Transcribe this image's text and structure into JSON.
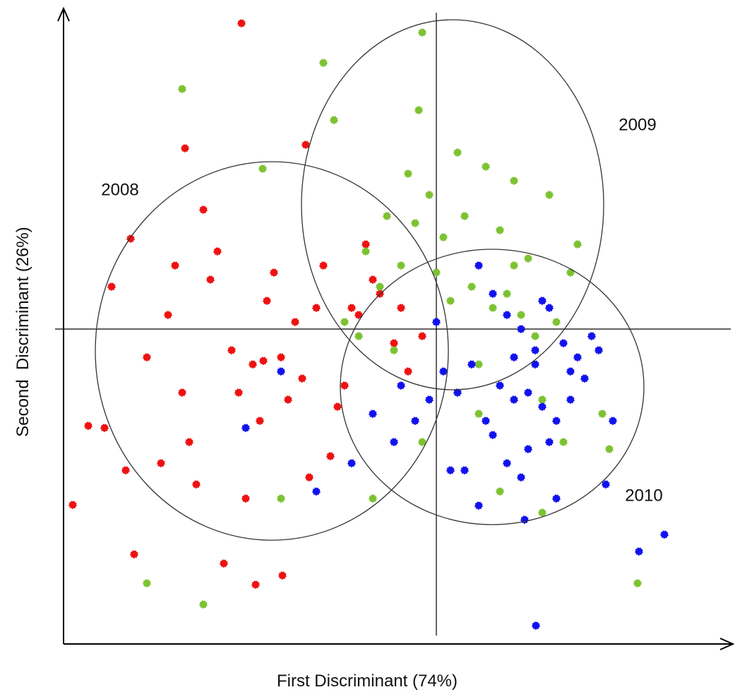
{
  "chart_data": {
    "type": "scatter",
    "x_label": "First Discriminant (74%)",
    "y_label": "Second  Discriminant (26%)",
    "xlim": [
      -5.28,
      4.17
    ],
    "ylim": [
      -4.46,
      4.51
    ],
    "series": [
      {
        "name": "2008",
        "color": "#ee1111",
        "ellipse": {
          "cx": -2.33,
          "cy": -0.31,
          "rx": 2.5,
          "ry": 2.68
        },
        "x": [
          -2.76,
          -3.56,
          -5.15,
          -4.28,
          -3.01,
          -2.56,
          -2.18,
          -4.93,
          -4.33,
          -3.3,
          -1.85,
          -4.6,
          -4.1,
          -3.8,
          -3.5,
          -3.2,
          -2.9,
          -2.6,
          -2.4,
          -2.2,
          -2.0,
          -1.8,
          -1.6,
          -1.4,
          -1.2,
          -1.0,
          -0.8,
          -0.6,
          -0.4,
          -0.2,
          -4.4,
          -3.9,
          -3.4,
          -2.8,
          -2.5,
          -2.3,
          -1.9,
          -1.5,
          -1.1,
          -0.9,
          -3.7,
          -3.1,
          -2.7,
          -2.1,
          -1.7,
          -1.3,
          -0.5,
          -4.7,
          -3.6,
          -2.45
        ],
        "y": [
          4.33,
          2.56,
          -2.49,
          -3.19,
          -3.32,
          -3.62,
          -3.49,
          -1.37,
          1.28,
          1.69,
          2.61,
          0.6,
          -0.4,
          0.2,
          -1.6,
          0.7,
          -0.3,
          -0.5,
          0.4,
          -0.4,
          0.1,
          -2.1,
          0.9,
          -1.1,
          0.3,
          1.2,
          0.5,
          -0.2,
          -0.6,
          -0.1,
          -2.0,
          -1.9,
          -2.2,
          -0.9,
          -1.3,
          0.8,
          -0.7,
          -1.8,
          0.2,
          0.7,
          0.9,
          1.1,
          -2.4,
          -1.0,
          0.3,
          -0.8,
          0.3,
          -1.4,
          -0.9,
          -0.45
        ]
      },
      {
        "name": "2009",
        "color": "#7cc231",
        "ellipse": {
          "cx": 0.23,
          "cy": 1.76,
          "rx": 2.14,
          "ry": 2.62
        },
        "x": [
          -3.6,
          -2.46,
          -1.6,
          -1.45,
          -0.2,
          -0.25,
          0.3,
          -0.7,
          -0.4,
          -0.1,
          0.1,
          0.4,
          0.7,
          0.9,
          1.1,
          1.3,
          1.6,
          1.9,
          2.0,
          -1.0,
          -0.8,
          -0.5,
          -0.3,
          0.0,
          0.2,
          0.5,
          0.8,
          1.0,
          1.2,
          1.4,
          1.7,
          -1.3,
          -0.6,
          0.6,
          1.5,
          1.8,
          2.35,
          -4.1,
          -3.3,
          -2.2,
          2.45,
          2.85,
          -1.1,
          0.3,
          0.9,
          1.5,
          -0.9,
          -0.2,
          0.6,
          1.1
        ],
        "y": [
          3.4,
          2.27,
          3.77,
          2.96,
          4.2,
          3.1,
          2.5,
          1.6,
          2.2,
          1.9,
          1.3,
          1.6,
          2.3,
          1.4,
          0.9,
          1.0,
          1.9,
          0.8,
          1.2,
          1.1,
          0.6,
          0.9,
          1.5,
          0.8,
          0.4,
          0.6,
          0.3,
          0.5,
          0.2,
          -0.1,
          0.1,
          0.1,
          -0.3,
          -0.5,
          -1.0,
          -1.6,
          -1.2,
          -3.6,
          -3.9,
          -2.4,
          -1.7,
          -3.6,
          -0.1,
          -0.9,
          -2.3,
          -2.6,
          -2.4,
          -1.6,
          -1.2,
          2.1
        ]
      },
      {
        "name": "2010",
        "color": "#1111ee",
        "ellipse": {
          "cx": 0.79,
          "cy": -0.82,
          "rx": 2.15,
          "ry": 1.95
        },
        "x": [
          3.23,
          2.87,
          1.41,
          0.6,
          0.8,
          1.0,
          1.2,
          1.4,
          1.6,
          1.8,
          2.0,
          2.2,
          0.9,
          1.1,
          1.3,
          1.5,
          1.7,
          1.9,
          2.1,
          0.5,
          0.7,
          0.3,
          0.1,
          -0.1,
          -0.3,
          -0.6,
          -0.9,
          -1.2,
          -1.7,
          -2.2,
          -2.7,
          1.6,
          1.3,
          1.0,
          2.4,
          2.5,
          1.25,
          0.4,
          0.8,
          1.9,
          1.4,
          1.1,
          0.2,
          0.0,
          -0.5,
          1.7,
          2.3,
          0.6,
          1.2,
          1.5
        ],
        "y": [
          -2.91,
          -3.15,
          -4.2,
          0.9,
          0.5,
          0.2,
          0.0,
          -0.3,
          0.3,
          -0.2,
          -0.4,
          -0.1,
          -0.8,
          -1.0,
          -0.9,
          -1.1,
          -1.3,
          -1.0,
          -0.7,
          -0.5,
          -1.3,
          -0.9,
          -0.6,
          -1.0,
          -1.3,
          -1.6,
          -1.2,
          -1.9,
          -2.3,
          -0.6,
          -1.4,
          -1.6,
          -1.7,
          -1.9,
          -2.2,
          -1.3,
          -2.7,
          -2.0,
          -1.5,
          -0.6,
          -0.5,
          -0.4,
          -2.0,
          0.1,
          -0.8,
          -2.4,
          -0.3,
          -2.5,
          -2.1,
          0.4
        ]
      }
    ]
  }
}
